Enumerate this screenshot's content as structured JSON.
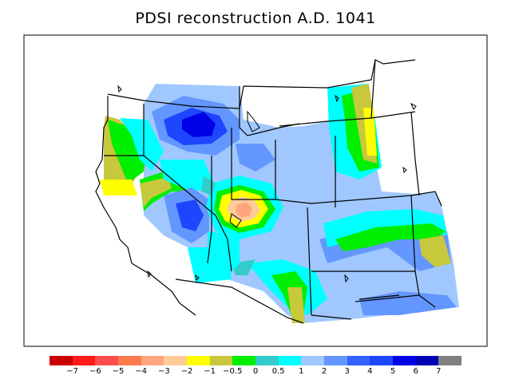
{
  "title": "PDSI reconstruction A.D. 1041",
  "legend": {
    "swatches": [
      "#cc0000",
      "#ff1a1a",
      "#ff4d4d",
      "#ff7a4d",
      "#ffa680",
      "#ffcc99",
      "#ffff00",
      "#c8c83c",
      "#00ee00",
      "#33cccc",
      "#00ffff",
      "#a0c8ff",
      "#6496ff",
      "#3264ff",
      "#1e46ff",
      "#0000e6",
      "#0000b4",
      "#808080"
    ],
    "labels": [
      "−7",
      "−6",
      "−5",
      "−4",
      "−3",
      "−2",
      "−1",
      "−0.5",
      "0",
      "0.5",
      "1",
      "2",
      "3",
      "4",
      "5",
      "6",
      "7"
    ]
  },
  "map": {
    "colors": {
      "light_blue": "#a0c8ff",
      "mid_blue": "#6496ff",
      "deep_blue": "#1e46ff",
      "darkest_blue": "#0000e6",
      "cyan": "#00ffff",
      "teal": "#33cccc",
      "green": "#00ee00",
      "olive": "#c8c83c",
      "yellow": "#ffff00",
      "peach": "#ffcc99",
      "salmon": "#ffa680",
      "border": "#000000"
    }
  }
}
